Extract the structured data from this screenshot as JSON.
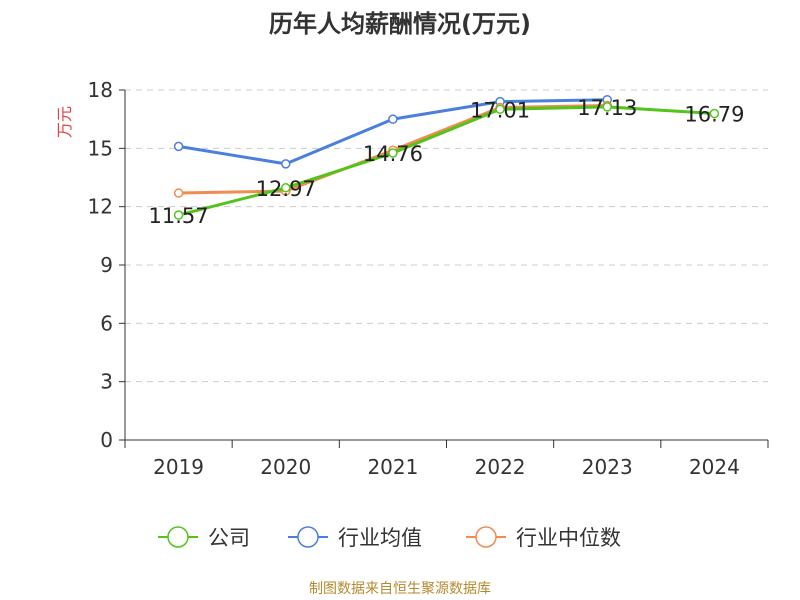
{
  "chart_data": {
    "type": "line",
    "title": "历年人均薪酬情况(万元)",
    "ylabel": "万元",
    "xlabel": "",
    "categories": [
      "2019",
      "2020",
      "2021",
      "2022",
      "2023",
      "2024"
    ],
    "ylim": [
      0,
      18
    ],
    "yticks": [
      0,
      3,
      6,
      9,
      12,
      15,
      18
    ],
    "grid": true,
    "legend_position": "bottom",
    "series": [
      {
        "name": "公司",
        "values": [
          11.57,
          12.97,
          14.76,
          17.01,
          17.13,
          16.79
        ],
        "color": "#52c41a"
      },
      {
        "name": "行业均值",
        "values": [
          15.1,
          14.2,
          16.5,
          17.4,
          17.5,
          null
        ],
        "color": "#4a7fdc"
      },
      {
        "name": "行业中位数",
        "values": [
          12.7,
          12.8,
          14.9,
          17.1,
          17.2,
          null
        ],
        "color": "#f08c4f"
      }
    ],
    "data_labels": [
      "11.57",
      "12.97",
      "14.76",
      "17.01",
      "17.13",
      "16.79"
    ]
  },
  "footer": {
    "source": "制图数据来自恒生聚源数据库",
    "source_color": "#b58a2e"
  },
  "colors": {
    "axis": "#333333",
    "grid": "#cccccc",
    "ylabel": "#e04040"
  }
}
